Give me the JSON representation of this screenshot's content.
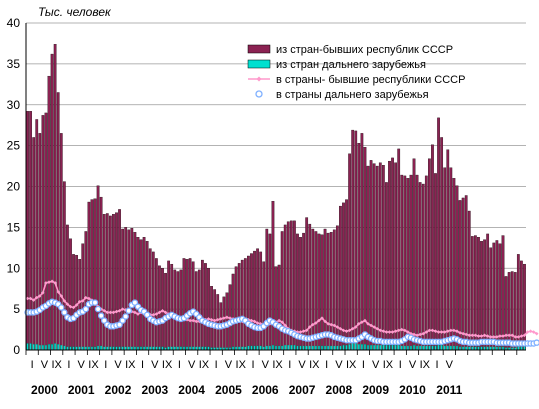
{
  "chart_data": {
    "type": "bar",
    "unit_label": "Тыс. человек",
    "ylim": [
      0,
      40
    ],
    "y_ticks": [
      "0",
      "5",
      "10",
      "15",
      "20",
      "25",
      "30",
      "35",
      "40"
    ],
    "grid": true,
    "legend_position": "top-right",
    "x_month_labels": [
      "I",
      "V",
      "IX",
      "I",
      "V",
      "IX",
      "I",
      "V",
      "IX",
      "I",
      "V",
      "IX",
      "I",
      "V",
      "IX",
      "I",
      "V",
      "IX",
      "I",
      "V",
      "IX",
      "I",
      "V",
      "IX",
      "I",
      "V",
      "IX",
      "I",
      "V",
      "IX",
      "I",
      "V",
      "IX",
      "I",
      "V"
    ],
    "x_year_labels": [
      "2000",
      "2001",
      "2002",
      "2003",
      "2004",
      "2005",
      "2006",
      "2007",
      "2008",
      "2009",
      "2010",
      "2011"
    ],
    "series": [
      {
        "name": "из стран-бывших республик СССР",
        "type": "bar",
        "color": "#8b2252",
        "values": [
          29.2,
          29.2,
          26.0,
          28.2,
          26.5,
          28.7,
          29.0,
          33.5,
          36.2,
          37.4,
          31.5,
          26.5,
          20.6,
          15.3,
          13.6,
          11.7,
          11.6,
          11.1,
          13.0,
          14.5,
          18.1,
          18.4,
          18.5,
          20.1,
          18.7,
          16.6,
          16.7,
          16.4,
          16.6,
          16.8,
          17.2,
          14.8,
          15.0,
          14.7,
          14.9,
          14.4,
          13.8,
          13.5,
          13.8,
          13.3,
          12.4,
          12.0,
          11.2,
          10.3,
          10.0,
          9.4,
          10.9,
          10.5,
          9.8,
          9.6,
          9.8,
          11.2,
          11.1,
          11.2,
          10.8,
          9.6,
          9.8,
          11.0,
          10.6,
          10.0,
          7.8,
          7.4,
          6.8,
          5.8,
          6.5,
          7.0,
          8.0,
          9.3,
          10.2,
          10.6,
          11.0,
          11.2,
          11.5,
          11.8,
          12.1,
          12.4,
          12.0,
          10.8,
          14.8,
          14.2,
          18.2,
          10.2,
          10.4,
          14.5,
          15.3,
          15.7,
          15.8,
          15.8,
          14.2,
          13.8,
          14.3,
          16.2,
          15.4,
          14.8,
          14.5,
          14.2,
          14.1,
          14.8,
          14.3,
          14.4,
          14.7,
          15.2,
          17.6,
          18.0,
          18.4,
          24.0,
          26.9,
          26.8,
          25.3,
          26.5,
          24.8,
          22.5,
          23.2,
          22.8,
          22.5,
          22.9,
          22.6,
          20.5,
          23.1,
          23.5,
          22.9,
          24.6,
          21.4,
          21.3,
          21.0,
          21.4,
          23.4,
          21.4,
          20.5,
          20.3,
          21.3,
          23.4,
          25.1,
          21.6,
          28.4,
          26.0,
          22.3,
          24.5,
          22.3,
          21.0,
          20.1,
          18.3,
          18.6,
          18.9,
          17.0,
          13.9,
          14.0,
          13.8,
          13.3,
          13.5,
          14.2,
          12.5,
          13.1,
          13.4,
          13.0,
          14.0,
          9.0,
          9.5,
          9.6,
          9.5,
          11.7,
          10.9,
          10.5
        ]
      },
      {
        "name": "из стран дальнего зарубежья",
        "type": "bar",
        "color": "#00e0d0",
        "values": [
          0.8,
          0.8,
          0.7,
          0.7,
          0.6,
          0.6,
          0.6,
          0.7,
          0.7,
          0.8,
          0.7,
          0.6,
          0.5,
          0.4,
          0.4,
          0.4,
          0.4,
          0.4,
          0.4,
          0.4,
          0.4,
          0.4,
          0.4,
          0.5,
          0.5,
          0.4,
          0.4,
          0.4,
          0.4,
          0.4,
          0.4,
          0.4,
          0.4,
          0.4,
          0.4,
          0.4,
          0.4,
          0.4,
          0.4,
          0.4,
          0.4,
          0.4,
          0.4,
          0.4,
          0.4,
          0.3,
          0.4,
          0.4,
          0.4,
          0.4,
          0.4,
          0.4,
          0.4,
          0.4,
          0.4,
          0.4,
          0.4,
          0.4,
          0.4,
          0.4,
          0.3,
          0.3,
          0.3,
          0.3,
          0.3,
          0.3,
          0.3,
          0.4,
          0.4,
          0.4,
          0.4,
          0.4,
          0.5,
          0.5,
          0.5,
          0.5,
          0.5,
          0.4,
          0.5,
          0.5,
          0.6,
          0.5,
          0.5,
          0.5,
          0.6,
          0.6,
          0.6,
          0.6,
          0.5,
          0.5,
          0.5,
          0.5,
          0.5,
          0.5,
          0.5,
          0.5,
          0.5,
          0.5,
          0.5,
          0.5,
          0.5,
          0.5,
          0.5,
          0.6,
          0.6,
          0.7,
          0.8,
          0.8,
          0.7,
          0.7,
          0.7,
          0.6,
          0.6,
          0.6,
          0.6,
          0.6,
          0.6,
          0.6,
          0.6,
          0.6,
          0.6,
          0.6,
          0.5,
          0.5,
          0.5,
          0.5,
          0.6,
          0.5,
          0.5,
          0.5,
          0.5,
          0.5,
          0.5,
          0.5,
          0.6,
          0.6,
          0.5,
          0.5,
          0.5,
          0.5,
          0.5,
          0.4,
          0.4,
          0.4,
          0.4,
          0.4,
          0.4,
          0.4,
          0.4,
          0.4,
          0.4,
          0.4,
          0.4,
          0.4,
          0.4,
          0.4,
          0.3,
          0.3,
          0.3,
          0.3,
          0.4,
          0.4,
          0.4
        ]
      },
      {
        "name": "в страны- бывшие республики СССР",
        "type": "line",
        "color": "#ff99cc",
        "values": [
          6.3,
          6.3,
          6.1,
          6.4,
          6.6,
          7.0,
          8.2,
          8.3,
          8.4,
          8.2,
          7.1,
          6.6,
          6.0,
          5.6,
          5.3,
          5.2,
          5.5,
          5.9,
          6.0,
          6.4,
          6.3,
          6.1,
          5.8,
          5.3,
          5.0,
          4.8,
          4.6,
          4.6,
          4.6,
          4.7,
          4.8,
          5.0,
          4.9,
          4.7,
          4.7,
          4.6,
          4.4,
          4.6,
          4.4,
          4.2,
          4.3,
          4.3,
          4.4,
          4.6,
          4.8,
          4.6,
          4.4,
          4.3,
          4.2,
          4.0,
          3.9,
          3.8,
          3.7,
          3.6,
          3.6,
          3.5,
          3.5,
          3.6,
          3.7,
          3.8,
          3.7,
          3.6,
          3.7,
          3.8,
          3.9,
          4.0,
          3.9,
          3.8,
          3.7,
          3.6,
          3.5,
          3.6,
          3.7,
          3.6,
          3.5,
          3.3,
          3.2,
          3.0,
          3.0,
          3.2,
          3.4,
          3.4,
          3.6,
          3.4,
          3.0,
          2.6,
          2.4,
          2.3,
          2.2,
          2.2,
          2.3,
          2.4,
          2.8,
          3.1,
          3.3,
          3.6,
          3.9,
          3.5,
          3.2,
          3.1,
          3.0,
          2.8,
          2.6,
          2.4,
          2.3,
          2.4,
          2.6,
          2.8,
          3.2,
          3.4,
          3.6,
          3.2,
          3.0,
          2.8,
          2.6,
          2.4,
          2.3,
          2.2,
          2.2,
          2.2,
          2.3,
          2.4,
          2.5,
          2.4,
          2.2,
          2.0,
          1.9,
          1.8,
          1.9,
          2.0,
          2.2,
          2.4,
          2.4,
          2.3,
          2.2,
          2.2,
          2.2,
          2.3,
          2.4,
          2.4,
          2.3,
          2.1,
          2.0,
          1.9,
          1.8,
          1.8,
          1.8,
          1.7,
          1.7,
          1.8,
          1.7,
          1.6,
          1.6,
          1.6,
          1.7,
          1.7,
          1.8,
          1.8,
          1.8,
          1.6,
          1.6,
          1.7,
          1.8,
          2.2,
          2.3,
          2.2,
          2.0
        ]
      },
      {
        "name": "в страны дальнего зарубежья",
        "type": "scatter",
        "color": "#7fb0ff",
        "values": [
          4.6,
          4.6,
          4.6,
          4.7,
          4.9,
          5.2,
          5.4,
          5.7,
          5.9,
          5.8,
          5.6,
          5.2,
          4.6,
          4.0,
          3.8,
          3.9,
          4.3,
          4.6,
          4.7,
          5.0,
          5.6,
          5.8,
          5.8,
          5.0,
          4.2,
          3.6,
          3.1,
          2.9,
          2.9,
          3.0,
          3.1,
          3.6,
          4.1,
          4.8,
          5.5,
          5.8,
          5.3,
          4.9,
          4.7,
          4.3,
          3.8,
          3.6,
          3.4,
          3.5,
          3.6,
          3.9,
          4.1,
          4.3,
          4.1,
          3.9,
          3.8,
          3.9,
          4.2,
          4.5,
          4.7,
          4.4,
          4.0,
          3.6,
          3.4,
          3.2,
          3.1,
          3.0,
          2.9,
          2.9,
          3.0,
          3.1,
          3.3,
          3.5,
          3.6,
          3.7,
          3.8,
          3.6,
          3.2,
          3.0,
          2.8,
          2.7,
          2.7,
          2.9,
          3.3,
          3.6,
          3.4,
          3.1,
          2.9,
          2.6,
          2.4,
          2.3,
          2.1,
          1.9,
          1.7,
          1.6,
          1.5,
          1.4,
          1.4,
          1.5,
          1.6,
          1.7,
          1.8,
          1.9,
          1.9,
          1.8,
          1.6,
          1.5,
          1.4,
          1.3,
          1.2,
          1.2,
          1.2,
          1.2,
          1.4,
          1.6,
          1.9,
          1.6,
          1.4,
          1.2,
          1.1,
          1.1,
          1.0,
          1.0,
          1.0,
          1.0,
          1.0,
          1.0,
          1.1,
          1.3,
          1.6,
          1.5,
          1.3,
          1.2,
          1.1,
          1.0,
          1.0,
          1.0,
          1.0,
          1.0,
          1.0,
          1.0,
          1.1,
          1.2,
          1.3,
          1.4,
          1.3,
          1.1,
          1.0,
          1.0,
          0.9,
          0.9,
          0.9,
          0.9,
          1.0,
          1.0,
          1.0,
          1.0,
          1.0,
          0.9,
          0.9,
          0.9,
          0.9,
          0.9,
          0.8,
          0.8,
          0.8,
          0.8,
          0.8,
          0.8,
          0.8,
          0.8,
          0.9
        ]
      }
    ]
  }
}
